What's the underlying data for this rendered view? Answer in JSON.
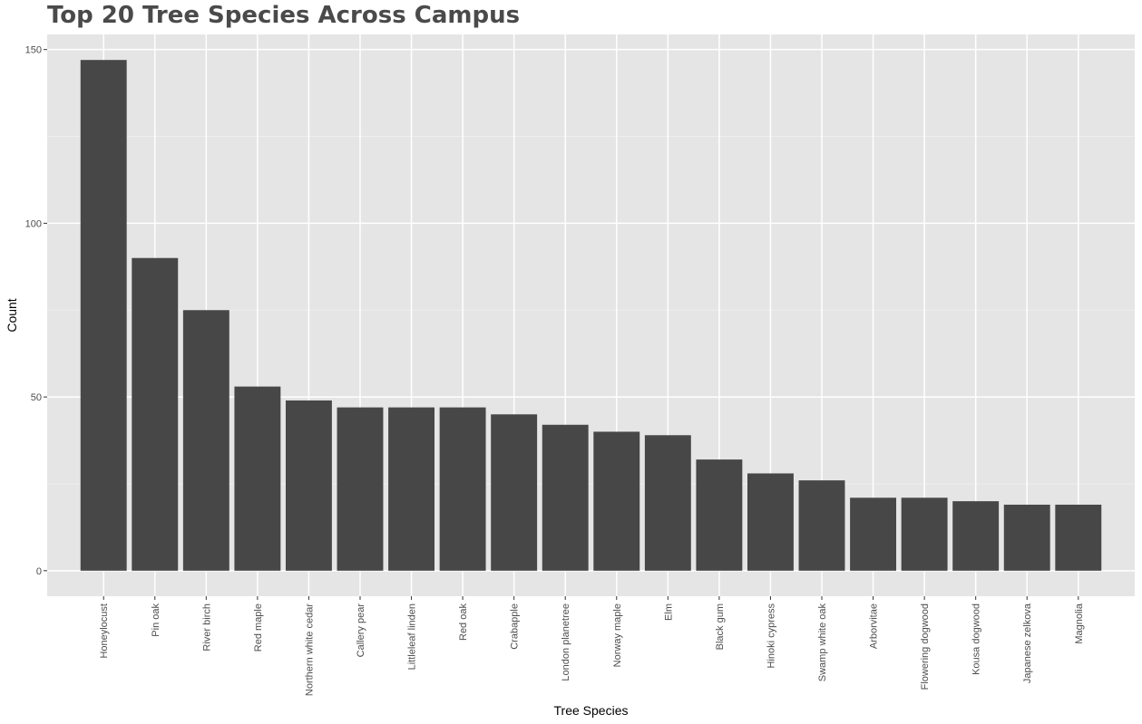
{
  "chart_data": {
    "type": "bar",
    "title": "Top 20 Tree Species Across Campus",
    "xlabel": "Tree Species",
    "ylabel": "Count",
    "categories": [
      "Honeylocust",
      "Pin oak",
      "River birch",
      "Red maple",
      "Northern white cedar",
      "Callery pear",
      "Littleleaf linden",
      "Red oak",
      "Crabapple",
      "London planetree",
      "Norway maple",
      "Elm",
      "Black gum",
      "Hinoki cypress",
      "Swamp white oak",
      "Arborvitae",
      "Flowering dogwood",
      "Kousa dogwood",
      "Japanese zelkova",
      "Magnolia"
    ],
    "values": [
      147,
      90,
      75,
      53,
      49,
      47,
      47,
      47,
      45,
      42,
      40,
      39,
      32,
      28,
      26,
      21,
      21,
      20,
      19,
      19
    ],
    "yticks": [
      0,
      50,
      100,
      150
    ],
    "ylim": [
      -7.35,
      154.35
    ],
    "grid": true,
    "legend": "none",
    "colors": {
      "bar": "#474747",
      "panel": "#e5e5e5",
      "grid_major": "#ffffff",
      "grid_minor": "#f0f0f0",
      "tick": "#333333"
    }
  }
}
